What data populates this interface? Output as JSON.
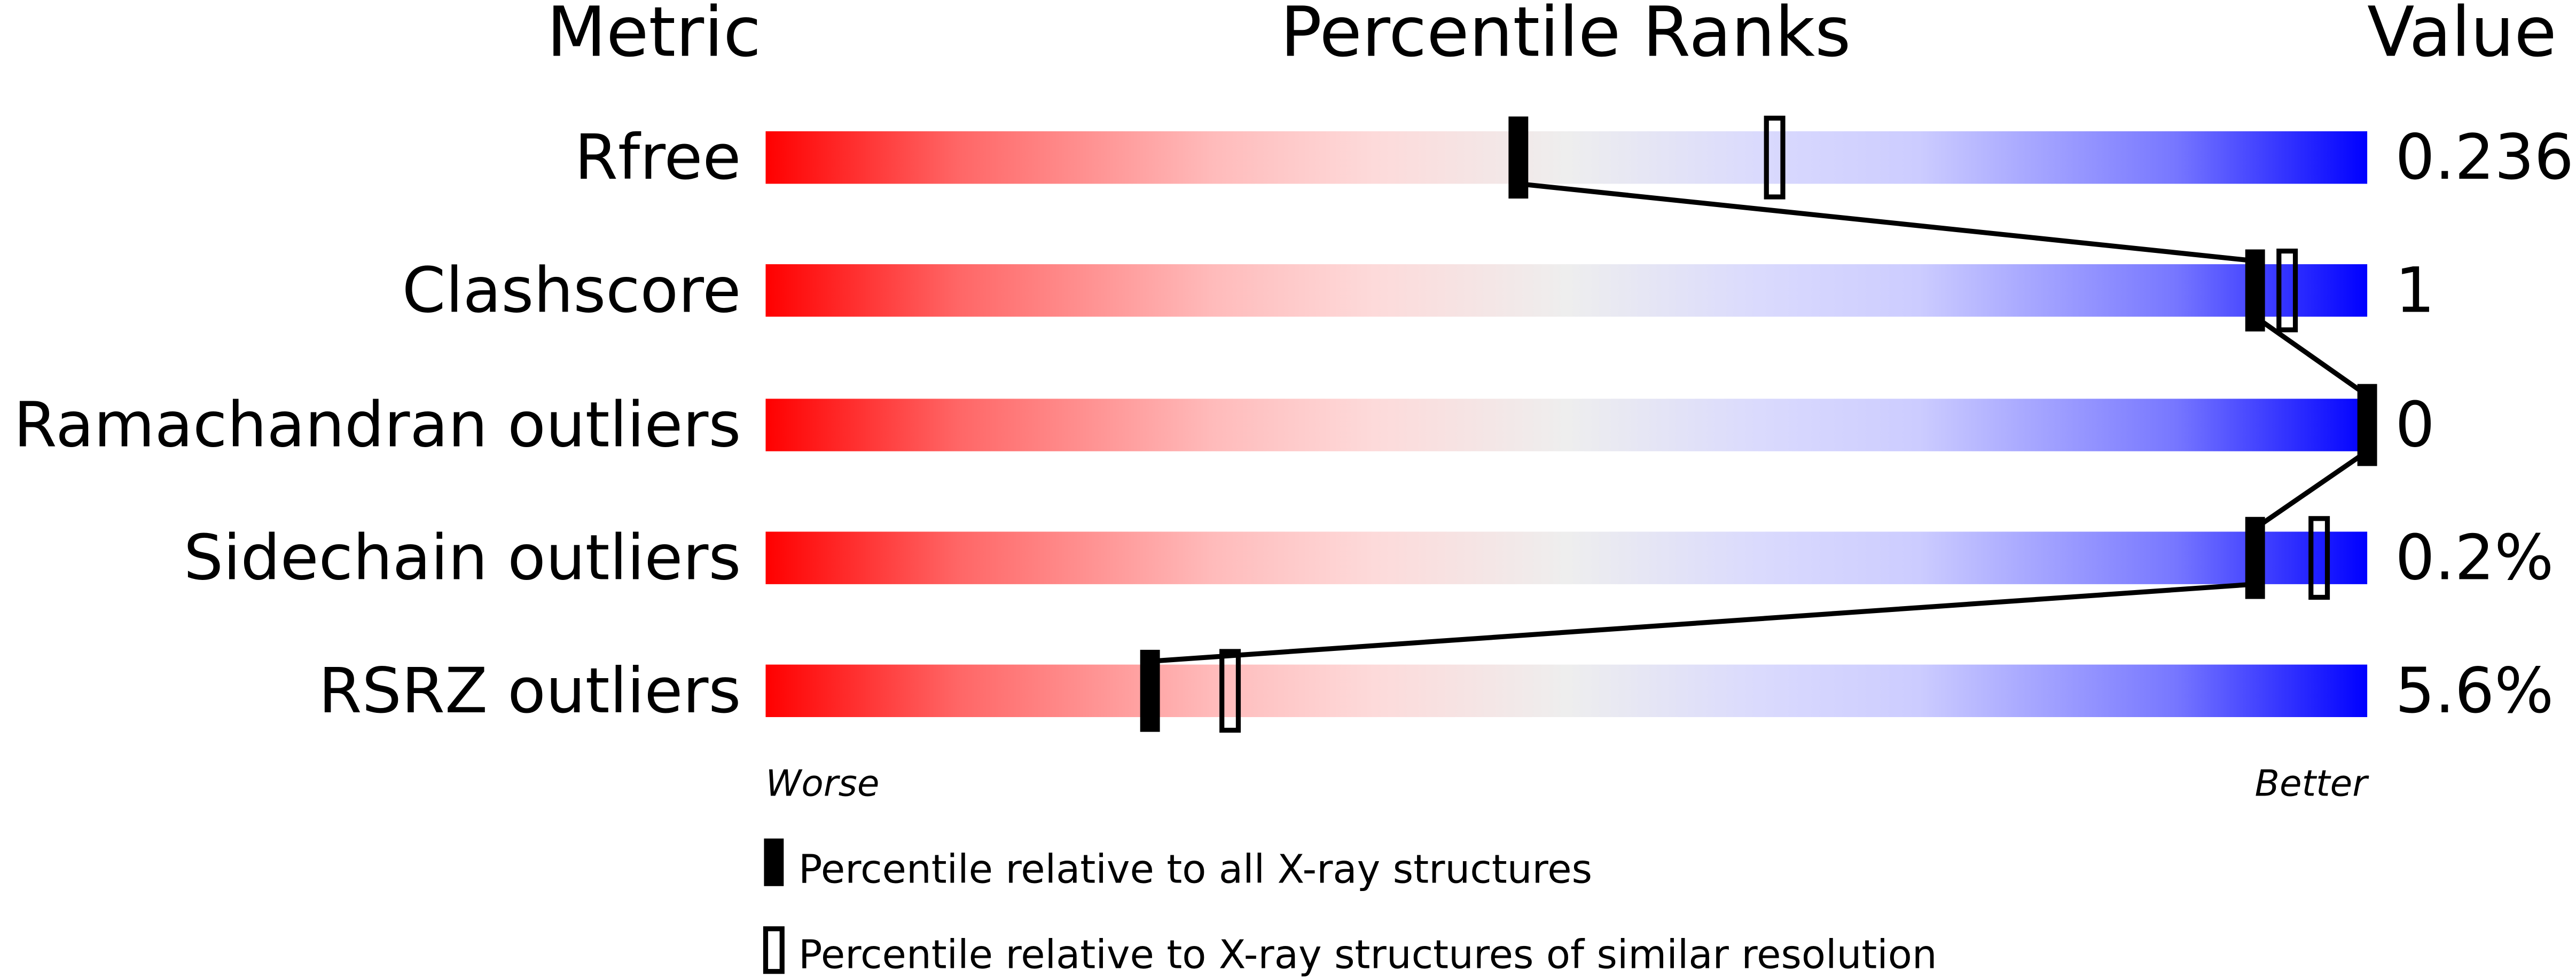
{
  "chart_data": {
    "type": "percentile-bar",
    "headers": {
      "metric": "Metric",
      "ranks": "Percentile Ranks",
      "value": "Value"
    },
    "xlim": [
      0,
      100
    ],
    "axis_labels": {
      "left": "Worse",
      "right": "Better"
    },
    "gradient_colors": [
      "#ff0000",
      "#ffdddd",
      "#eeeeee",
      "#ddddff",
      "#0000ff"
    ],
    "rows": [
      {
        "metric": "Rfree",
        "value": "0.236",
        "percentile_all": 47,
        "percentile_similar": 63
      },
      {
        "metric": "Clashscore",
        "value": "1",
        "percentile_all": 93,
        "percentile_similar": 95
      },
      {
        "metric": "Ramachandran outliers",
        "value": "0",
        "percentile_all": 100,
        "percentile_similar": null
      },
      {
        "metric": "Sidechain outliers",
        "value": "0.2%",
        "percentile_all": 93,
        "percentile_similar": 97
      },
      {
        "metric": "RSRZ outliers",
        "value": "5.6%",
        "percentile_all": 24,
        "percentile_similar": 29
      }
    ],
    "legend": [
      {
        "marker": "filled",
        "label": "Percentile relative to all X-ray structures"
      },
      {
        "marker": "open",
        "label": "Percentile relative to X-ray structures of similar resolution"
      }
    ]
  }
}
